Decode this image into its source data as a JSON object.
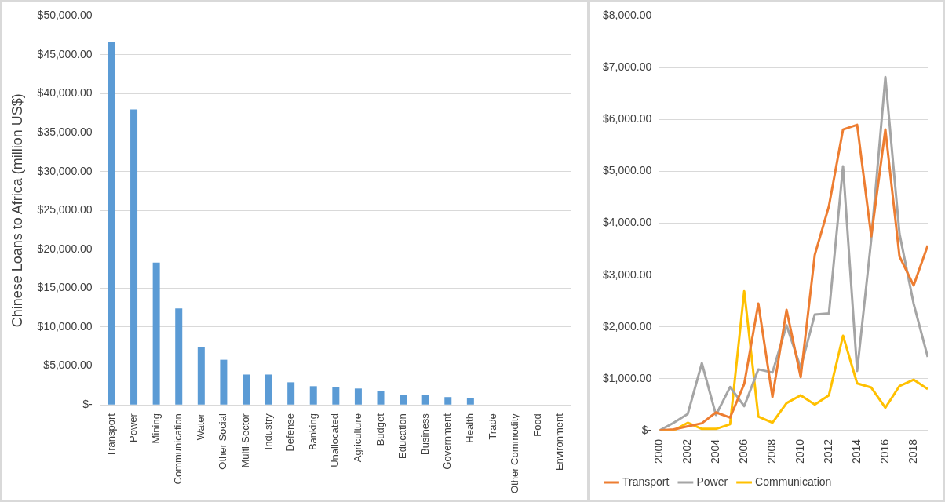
{
  "chart_data": [
    {
      "type": "bar",
      "ylabel": "Chinese Loans to Africa (million US$)",
      "categories": [
        "Transport",
        "Power",
        "Mining",
        "Communication",
        "Water",
        "Other Social",
        "Multi-Sector",
        "Industry",
        "Defense",
        "Banking",
        "Unallocated",
        "Agriculture",
        "Budget",
        "Education",
        "Business",
        "Government",
        "Health",
        "Trade",
        "Other Commodity",
        "Food",
        "Environment"
      ],
      "values": [
        46600,
        38000,
        18300,
        12400,
        7400,
        5800,
        3900,
        3900,
        2900,
        2400,
        2300,
        2100,
        1800,
        1300,
        1300,
        1000,
        900,
        0,
        0,
        0,
        0
      ],
      "color": "#5b9bd5",
      "ylim": [
        0,
        50000
      ],
      "yticks": [
        {
          "value": 0,
          "label": "$-"
        },
        {
          "value": 5000,
          "label": "$5,000.00"
        },
        {
          "value": 10000,
          "label": "$10,000.00"
        },
        {
          "value": 15000,
          "label": "$15,000.00"
        },
        {
          "value": 20000,
          "label": "$20,000.00"
        },
        {
          "value": 25000,
          "label": "$25,000.00"
        },
        {
          "value": 30000,
          "label": "$30,000.00"
        },
        {
          "value": 35000,
          "label": "$35,000.00"
        },
        {
          "value": 40000,
          "label": "$40,000.00"
        },
        {
          "value": 45000,
          "label": "$45,000.00"
        },
        {
          "value": 50000,
          "label": "$50,000.00"
        }
      ],
      "grid": "y",
      "legend": false
    },
    {
      "type": "line",
      "x": [
        2000,
        2001,
        2002,
        2003,
        2004,
        2005,
        2006,
        2007,
        2008,
        2009,
        2010,
        2011,
        2012,
        2013,
        2014,
        2015,
        2016,
        2017,
        2018,
        2019
      ],
      "series": [
        {
          "name": "Transport",
          "color": "#ed7d31",
          "values": [
            0,
            20,
            80,
            140,
            350,
            250,
            900,
            2450,
            650,
            2330,
            1030,
            3390,
            4330,
            5810,
            5900,
            3750,
            5810,
            3360,
            2800,
            3570
          ]
        },
        {
          "name": "Power",
          "color": "#a5a5a5",
          "values": [
            0,
            150,
            320,
            1300,
            300,
            840,
            470,
            1180,
            1120,
            2030,
            1210,
            2240,
            2260,
            5100,
            1150,
            3690,
            6820,
            3800,
            2450,
            1420
          ]
        },
        {
          "name": "Communication",
          "color": "#ffc000",
          "values": [
            0,
            0,
            150,
            30,
            30,
            120,
            2690,
            270,
            150,
            530,
            680,
            500,
            680,
            1830,
            910,
            830,
            440,
            860,
            980,
            800
          ]
        }
      ],
      "xlim": [
        2000,
        2019
      ],
      "xticks": [
        2000,
        2002,
        2004,
        2006,
        2008,
        2010,
        2012,
        2014,
        2016,
        2018
      ],
      "ylim": [
        0,
        8000
      ],
      "yticks": [
        {
          "value": 0,
          "label": "$-"
        },
        {
          "value": 1000,
          "label": "$1,000.00"
        },
        {
          "value": 2000,
          "label": "$2,000.00"
        },
        {
          "value": 3000,
          "label": "$3,000.00"
        },
        {
          "value": 4000,
          "label": "$4,000.00"
        },
        {
          "value": 5000,
          "label": "$5,000.00"
        },
        {
          "value": 6000,
          "label": "$6,000.00"
        },
        {
          "value": 7000,
          "label": "$7,000.00"
        },
        {
          "value": 8000,
          "label": "$8,000.00"
        }
      ],
      "grid": "y",
      "legend": "bottom",
      "marker": "none",
      "line_style": "solid"
    }
  ]
}
